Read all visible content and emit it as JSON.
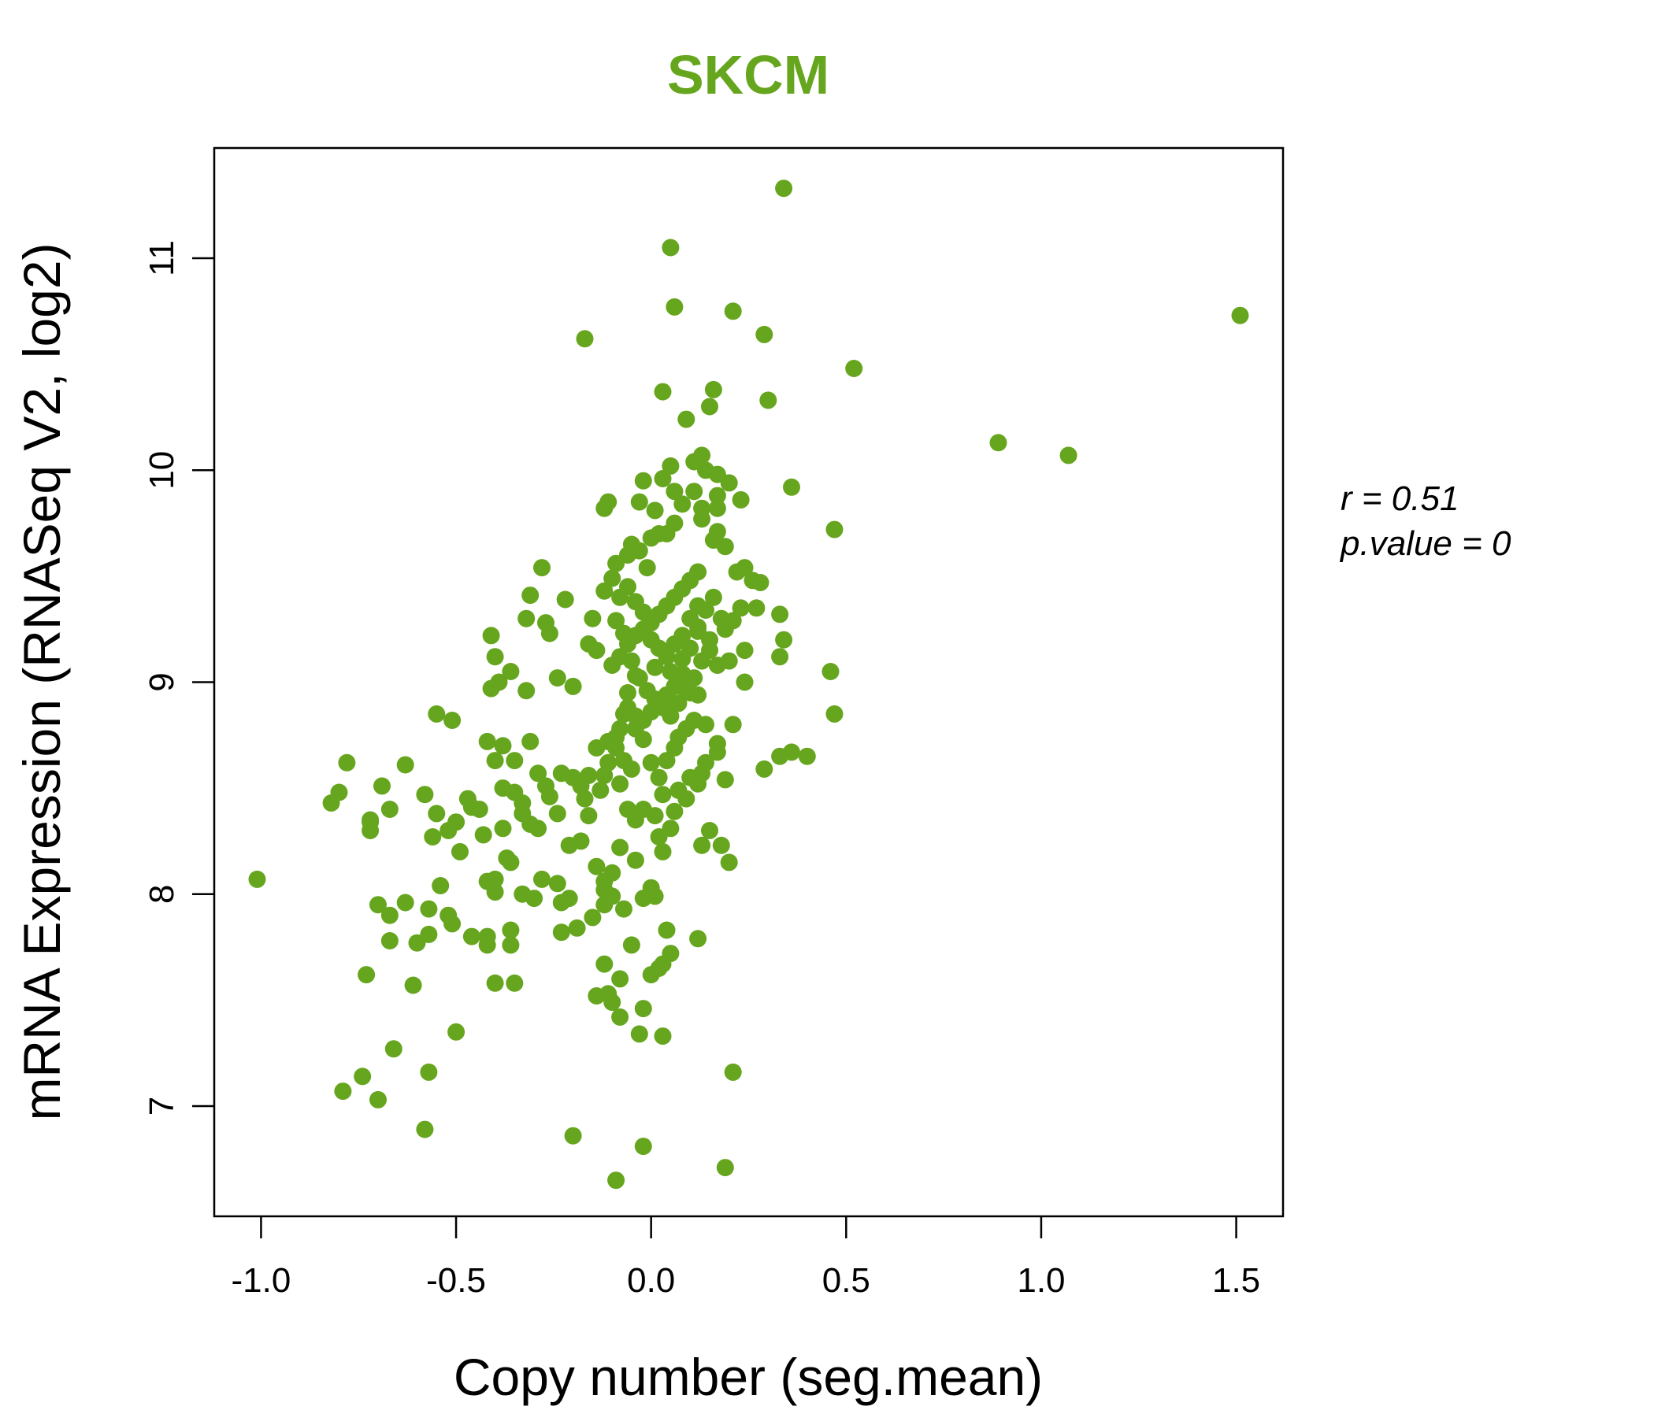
{
  "colors": {
    "accent": "#66a61e",
    "axis": "#000000",
    "background": "#ffffff"
  },
  "stats": {
    "r": "r = 0.51",
    "p_value": "p.value = 0"
  },
  "chart_data": {
    "type": "scatter",
    "title": "SKCM",
    "xlabel": "Copy number (seg.mean)",
    "ylabel": "mRNA Expression (RNASeq V2, log2)",
    "xlim": [
      -1.12,
      1.62
    ],
    "ylim": [
      6.48,
      11.52
    ],
    "x_ticks": [
      -1.0,
      -0.5,
      0.0,
      0.5,
      1.0,
      1.5
    ],
    "x_tick_labels": [
      "-1.0",
      "-0.5",
      "0.0",
      "0.5",
      "1.0",
      "1.5"
    ],
    "y_ticks": [
      7,
      8,
      9,
      10,
      11
    ],
    "y_tick_labels": [
      "7",
      "8",
      "9",
      "10",
      "11"
    ],
    "grid": false,
    "legend": "none",
    "points": [
      [
        -1.01,
        8.07
      ],
      [
        1.51,
        10.73
      ],
      [
        1.07,
        10.07
      ],
      [
        0.89,
        10.13
      ],
      [
        0.52,
        10.48
      ],
      [
        0.34,
        11.33
      ],
      [
        0.05,
        11.05
      ],
      [
        0.06,
        10.77
      ],
      [
        0.21,
        10.75
      ],
      [
        0.29,
        10.64
      ],
      [
        -0.17,
        10.62
      ],
      [
        0.3,
        10.33
      ],
      [
        0.16,
        10.38
      ],
      [
        0.03,
        10.37
      ],
      [
        0.15,
        10.3
      ],
      [
        0.09,
        10.24
      ],
      [
        0.36,
        9.92
      ],
      [
        0.47,
        9.72
      ],
      [
        0.46,
        9.05
      ],
      [
        0.47,
        8.85
      ],
      [
        0.4,
        8.65
      ],
      [
        0.36,
        8.67
      ],
      [
        0.33,
        8.65
      ],
      [
        0.29,
        8.59
      ],
      [
        0.33,
        9.32
      ],
      [
        0.34,
        9.2
      ],
      [
        0.33,
        9.12
      ],
      [
        0.24,
        9.0
      ],
      [
        0.24,
        9.15
      ],
      [
        0.2,
        9.1
      ],
      [
        0.21,
        8.8
      ],
      [
        0.19,
        8.54
      ],
      [
        -0.82,
        8.43
      ],
      [
        -0.8,
        8.48
      ],
      [
        -0.78,
        8.62
      ],
      [
        -0.72,
        8.34
      ],
      [
        -0.72,
        8.3
      ],
      [
        -0.69,
        8.51
      ],
      [
        -0.67,
        8.4
      ],
      [
        -0.63,
        8.61
      ],
      [
        -0.58,
        8.47
      ],
      [
        -0.56,
        8.27
      ],
      [
        -0.55,
        8.38
      ],
      [
        -0.52,
        8.3
      ],
      [
        -0.49,
        8.2
      ],
      [
        -0.47,
        8.45
      ],
      [
        -0.44,
        8.4
      ],
      [
        -0.42,
        8.72
      ],
      [
        -0.4,
        8.63
      ],
      [
        -0.38,
        8.7
      ],
      [
        -0.35,
        8.63
      ],
      [
        -0.31,
        8.72
      ],
      [
        -0.29,
        8.57
      ],
      [
        -0.27,
        8.51
      ],
      [
        -0.35,
        8.48
      ],
      [
        -0.31,
        8.33
      ],
      [
        -0.29,
        8.31
      ],
      [
        -0.33,
        8.38
      ],
      [
        -0.38,
        8.31
      ],
      [
        -0.36,
        8.15
      ],
      [
        -0.37,
        8.17
      ],
      [
        -0.28,
        8.07
      ],
      [
        -0.24,
        8.05
      ],
      [
        -0.21,
        7.98
      ],
      [
        -0.18,
        8.25
      ],
      [
        -0.14,
        8.13
      ],
      [
        -0.12,
        8.06
      ],
      [
        -0.1,
        8.1
      ],
      [
        -0.08,
        8.22
      ],
      [
        -0.04,
        8.16
      ],
      [
        -0.12,
        8.02
      ],
      [
        -0.1,
        7.99
      ],
      [
        -0.15,
        7.89
      ],
      [
        -0.12,
        7.95
      ],
      [
        -0.07,
        7.93
      ],
      [
        -0.02,
        7.98
      ],
      [
        0.01,
        7.99
      ],
      [
        0.0,
        8.03
      ],
      [
        0.03,
        8.2
      ],
      [
        0.02,
        8.27
      ],
      [
        0.05,
        8.31
      ],
      [
        0.06,
        8.39
      ],
      [
        0.09,
        8.45
      ],
      [
        0.12,
        8.52
      ],
      [
        0.14,
        8.62
      ],
      [
        0.17,
        8.67
      ],
      [
        0.17,
        8.71
      ],
      [
        0.15,
        8.3
      ],
      [
        0.18,
        8.23
      ],
      [
        0.2,
        8.15
      ],
      [
        0.13,
        8.23
      ],
      [
        -0.7,
        7.95
      ],
      [
        -0.67,
        7.9
      ],
      [
        -0.63,
        7.96
      ],
      [
        -0.57,
        7.93
      ],
      [
        -0.52,
        7.9
      ],
      [
        -0.51,
        7.86
      ],
      [
        -0.46,
        7.8
      ],
      [
        -0.42,
        7.8
      ],
      [
        -0.42,
        7.76
      ],
      [
        -0.36,
        7.76
      ],
      [
        -0.36,
        7.83
      ],
      [
        -0.3,
        7.98
      ],
      [
        -0.33,
        8.0
      ],
      [
        -0.4,
        8.07
      ],
      [
        -0.42,
        8.06
      ],
      [
        -0.4,
        8.01
      ],
      [
        -0.54,
        8.04
      ],
      [
        -0.6,
        7.77
      ],
      [
        -0.57,
        7.81
      ],
      [
        -0.67,
        7.78
      ],
      [
        -0.73,
        7.62
      ],
      [
        -0.61,
        7.57
      ],
      [
        -0.4,
        7.58
      ],
      [
        -0.35,
        7.58
      ],
      [
        -0.5,
        7.35
      ],
      [
        -0.66,
        7.27
      ],
      [
        -0.74,
        7.14
      ],
      [
        -0.79,
        7.07
      ],
      [
        -0.7,
        7.03
      ],
      [
        -0.57,
        7.16
      ],
      [
        -0.58,
        6.89
      ],
      [
        -0.2,
        6.86
      ],
      [
        -0.09,
        6.65
      ],
      [
        -0.02,
        6.81
      ],
      [
        0.19,
        6.71
      ],
      [
        0.21,
        7.16
      ],
      [
        -0.03,
        7.34
      ],
      [
        0.03,
        7.33
      ],
      [
        -0.02,
        7.46
      ],
      [
        -0.08,
        7.42
      ],
      [
        -0.1,
        7.49
      ],
      [
        -0.14,
        7.52
      ],
      [
        -0.11,
        7.53
      ],
      [
        -0.08,
        7.6
      ],
      [
        0.0,
        7.62
      ],
      [
        0.03,
        7.67
      ],
      [
        0.05,
        7.72
      ],
      [
        0.12,
        7.79
      ],
      [
        0.04,
        7.83
      ],
      [
        0.02,
        7.65
      ],
      [
        -0.05,
        7.76
      ],
      [
        -0.12,
        7.67
      ],
      [
        -0.23,
        7.82
      ],
      [
        -0.19,
        7.84
      ],
      [
        -0.23,
        7.96
      ],
      [
        -0.21,
        8.23
      ],
      [
        -0.24,
        8.38
      ],
      [
        -0.16,
        8.37
      ],
      [
        -0.16,
        8.56
      ],
      [
        -0.2,
        8.55
      ],
      [
        -0.23,
        8.57
      ],
      [
        -0.12,
        8.56
      ],
      [
        -0.14,
        8.69
      ],
      [
        -0.11,
        8.72
      ],
      [
        -0.08,
        8.52
      ],
      [
        -0.06,
        8.4
      ],
      [
        -0.04,
        8.35
      ],
      [
        -0.02,
        8.4
      ],
      [
        0.01,
        8.37
      ],
      [
        0.03,
        8.47
      ],
      [
        0.07,
        8.49
      ],
      [
        0.1,
        8.55
      ],
      [
        0.13,
        8.57
      ],
      [
        0.14,
        8.8
      ],
      [
        0.12,
        8.94
      ],
      [
        0.1,
        8.95
      ],
      [
        0.09,
        9.0
      ],
      [
        -0.72,
        8.35
      ],
      [
        -0.41,
        8.97
      ],
      [
        -0.39,
        9.0
      ],
      [
        -0.36,
        9.05
      ],
      [
        -0.32,
        8.96
      ],
      [
        -0.2,
        8.98
      ],
      [
        -0.24,
        9.02
      ],
      [
        -0.41,
        9.22
      ],
      [
        -0.4,
        9.12
      ],
      [
        -0.32,
        9.3
      ],
      [
        -0.31,
        9.41
      ],
      [
        -0.28,
        9.54
      ],
      [
        -0.27,
        9.28
      ],
      [
        -0.26,
        9.23
      ],
      [
        -0.22,
        9.39
      ],
      [
        -0.16,
        9.18
      ],
      [
        -0.14,
        9.15
      ],
      [
        -0.15,
        9.3
      ],
      [
        -0.12,
        9.43
      ],
      [
        -0.1,
        9.49
      ],
      [
        -0.09,
        9.29
      ],
      [
        -0.09,
        9.56
      ],
      [
        -0.06,
        9.6
      ],
      [
        -0.05,
        9.65
      ],
      [
        -0.03,
        9.62
      ],
      [
        -0.01,
        9.54
      ],
      [
        0.0,
        9.68
      ],
      [
        0.02,
        9.7
      ],
      [
        0.04,
        9.7
      ],
      [
        0.06,
        9.75
      ],
      [
        0.08,
        9.84
      ],
      [
        0.06,
        9.9
      ],
      [
        0.03,
        9.96
      ],
      [
        0.05,
        10.02
      ],
      [
        0.11,
        10.04
      ],
      [
        0.13,
        10.07
      ],
      [
        0.14,
        10.0
      ],
      [
        0.17,
        9.98
      ],
      [
        0.2,
        9.94
      ],
      [
        0.17,
        9.88
      ],
      [
        0.23,
        9.86
      ],
      [
        0.17,
        9.82
      ],
      [
        0.13,
        9.77
      ],
      [
        0.16,
        9.67
      ],
      [
        0.17,
        9.71
      ],
      [
        0.19,
        9.64
      ],
      [
        0.22,
        9.52
      ],
      [
        0.24,
        9.54
      ],
      [
        0.26,
        9.48
      ],
      [
        0.28,
        9.47
      ],
      [
        0.27,
        9.35
      ],
      [
        0.23,
        9.35
      ],
      [
        0.21,
        9.29
      ],
      [
        0.19,
        9.25
      ],
      [
        0.15,
        9.2
      ],
      [
        0.12,
        9.24
      ],
      [
        0.08,
        9.11
      ],
      [
        0.05,
        9.05
      ],
      [
        0.01,
        9.07
      ],
      [
        -0.04,
        9.03
      ],
      [
        -0.06,
        8.95
      ],
      [
        -0.07,
        8.85
      ],
      [
        -0.08,
        8.78
      ],
      [
        -0.09,
        8.74
      ],
      [
        -0.04,
        8.78
      ],
      [
        -0.02,
        8.73
      ],
      [
        0.0,
        8.62
      ],
      [
        0.04,
        8.63
      ],
      [
        0.06,
        8.69
      ],
      [
        0.07,
        8.74
      ],
      [
        0.09,
        8.78
      ],
      [
        0.11,
        8.82
      ],
      [
        -0.11,
        9.85
      ],
      [
        -0.12,
        9.82
      ],
      [
        -0.02,
        9.95
      ],
      [
        -0.03,
        9.85
      ],
      [
        0.01,
        9.81
      ],
      [
        0.11,
        9.9
      ],
      [
        0.13,
        9.82
      ],
      [
        -0.1,
        9.08
      ],
      [
        -0.08,
        9.12
      ],
      [
        -0.06,
        9.18
      ],
      [
        -0.04,
        9.22
      ],
      [
        -0.02,
        9.25
      ],
      [
        0.0,
        9.28
      ],
      [
        0.02,
        9.32
      ],
      [
        0.04,
        9.36
      ],
      [
        0.06,
        9.4
      ],
      [
        0.08,
        9.44
      ],
      [
        0.1,
        9.48
      ],
      [
        0.12,
        9.52
      ],
      [
        -0.07,
        9.23
      ],
      [
        -0.05,
        9.1
      ],
      [
        -0.03,
        9.02
      ],
      [
        -0.01,
        8.96
      ],
      [
        0.01,
        8.92
      ],
      [
        0.03,
        8.88
      ],
      [
        0.05,
        8.84
      ],
      [
        0.07,
        8.9
      ],
      [
        0.09,
        8.96
      ],
      [
        0.11,
        9.02
      ],
      [
        0.13,
        9.1
      ],
      [
        0.15,
        9.15
      ],
      [
        0.17,
        9.08
      ],
      [
        -0.06,
        8.88
      ],
      [
        -0.04,
        8.84
      ],
      [
        -0.02,
        8.82
      ],
      [
        0.0,
        8.86
      ],
      [
        0.02,
        8.9
      ],
      [
        0.04,
        8.94
      ],
      [
        0.06,
        8.98
      ],
      [
        0.08,
        9.04
      ],
      [
        0.1,
        9.16
      ],
      [
        0.12,
        9.26
      ],
      [
        0.14,
        9.34
      ],
      [
        0.16,
        9.4
      ],
      [
        0.18,
        9.3
      ],
      [
        -0.08,
        9.4
      ],
      [
        -0.06,
        9.45
      ],
      [
        -0.04,
        9.38
      ],
      [
        -0.02,
        9.33
      ],
      [
        0.0,
        9.2
      ],
      [
        0.02,
        9.16
      ],
      [
        0.04,
        9.12
      ],
      [
        0.06,
        9.18
      ],
      [
        0.08,
        9.22
      ],
      [
        0.1,
        9.3
      ],
      [
        0.12,
        9.36
      ],
      [
        -0.55,
        8.85
      ],
      [
        -0.51,
        8.82
      ],
      [
        -0.46,
        8.41
      ],
      [
        -0.43,
        8.28
      ],
      [
        -0.5,
        8.34
      ],
      [
        -0.38,
        8.5
      ],
      [
        -0.33,
        8.43
      ],
      [
        -0.26,
        8.46
      ],
      [
        -0.18,
        8.51
      ],
      [
        -0.17,
        8.45
      ],
      [
        -0.13,
        8.49
      ],
      [
        -0.11,
        8.62
      ],
      [
        -0.09,
        8.69
      ],
      [
        -0.07,
        8.63
      ],
      [
        -0.05,
        8.59
      ],
      [
        0.02,
        8.55
      ]
    ]
  }
}
